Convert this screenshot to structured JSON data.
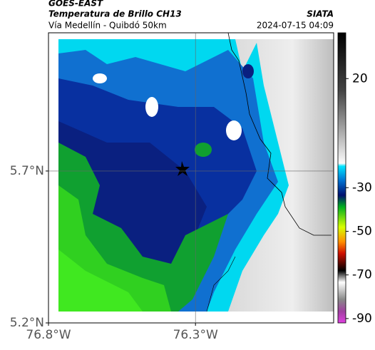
{
  "header": {
    "source": "GOES-EAST",
    "title": "Temperatura de Brillo CH13",
    "subtitle": "Vía Medellín - Quibdó 50km",
    "credit": "SIATA",
    "timestamp": "2024-07-15 04:09"
  },
  "map": {
    "xlim": [
      -76.8,
      -75.83
    ],
    "ylim": [
      5.2,
      6.155
    ],
    "xticks": [
      {
        "value": -76.8,
        "label": "76.8°W"
      },
      {
        "value": -76.3,
        "label": "76.3°W"
      }
    ],
    "yticks": [
      {
        "value": 5.2,
        "label": "5.2°N"
      },
      {
        "value": 5.7,
        "label": "5.7°N"
      }
    ],
    "grid": true
  },
  "colorbar": {
    "lim": [
      -92,
      41
    ],
    "ticks": [
      20,
      -30,
      -50,
      -70,
      -90
    ]
  }
}
